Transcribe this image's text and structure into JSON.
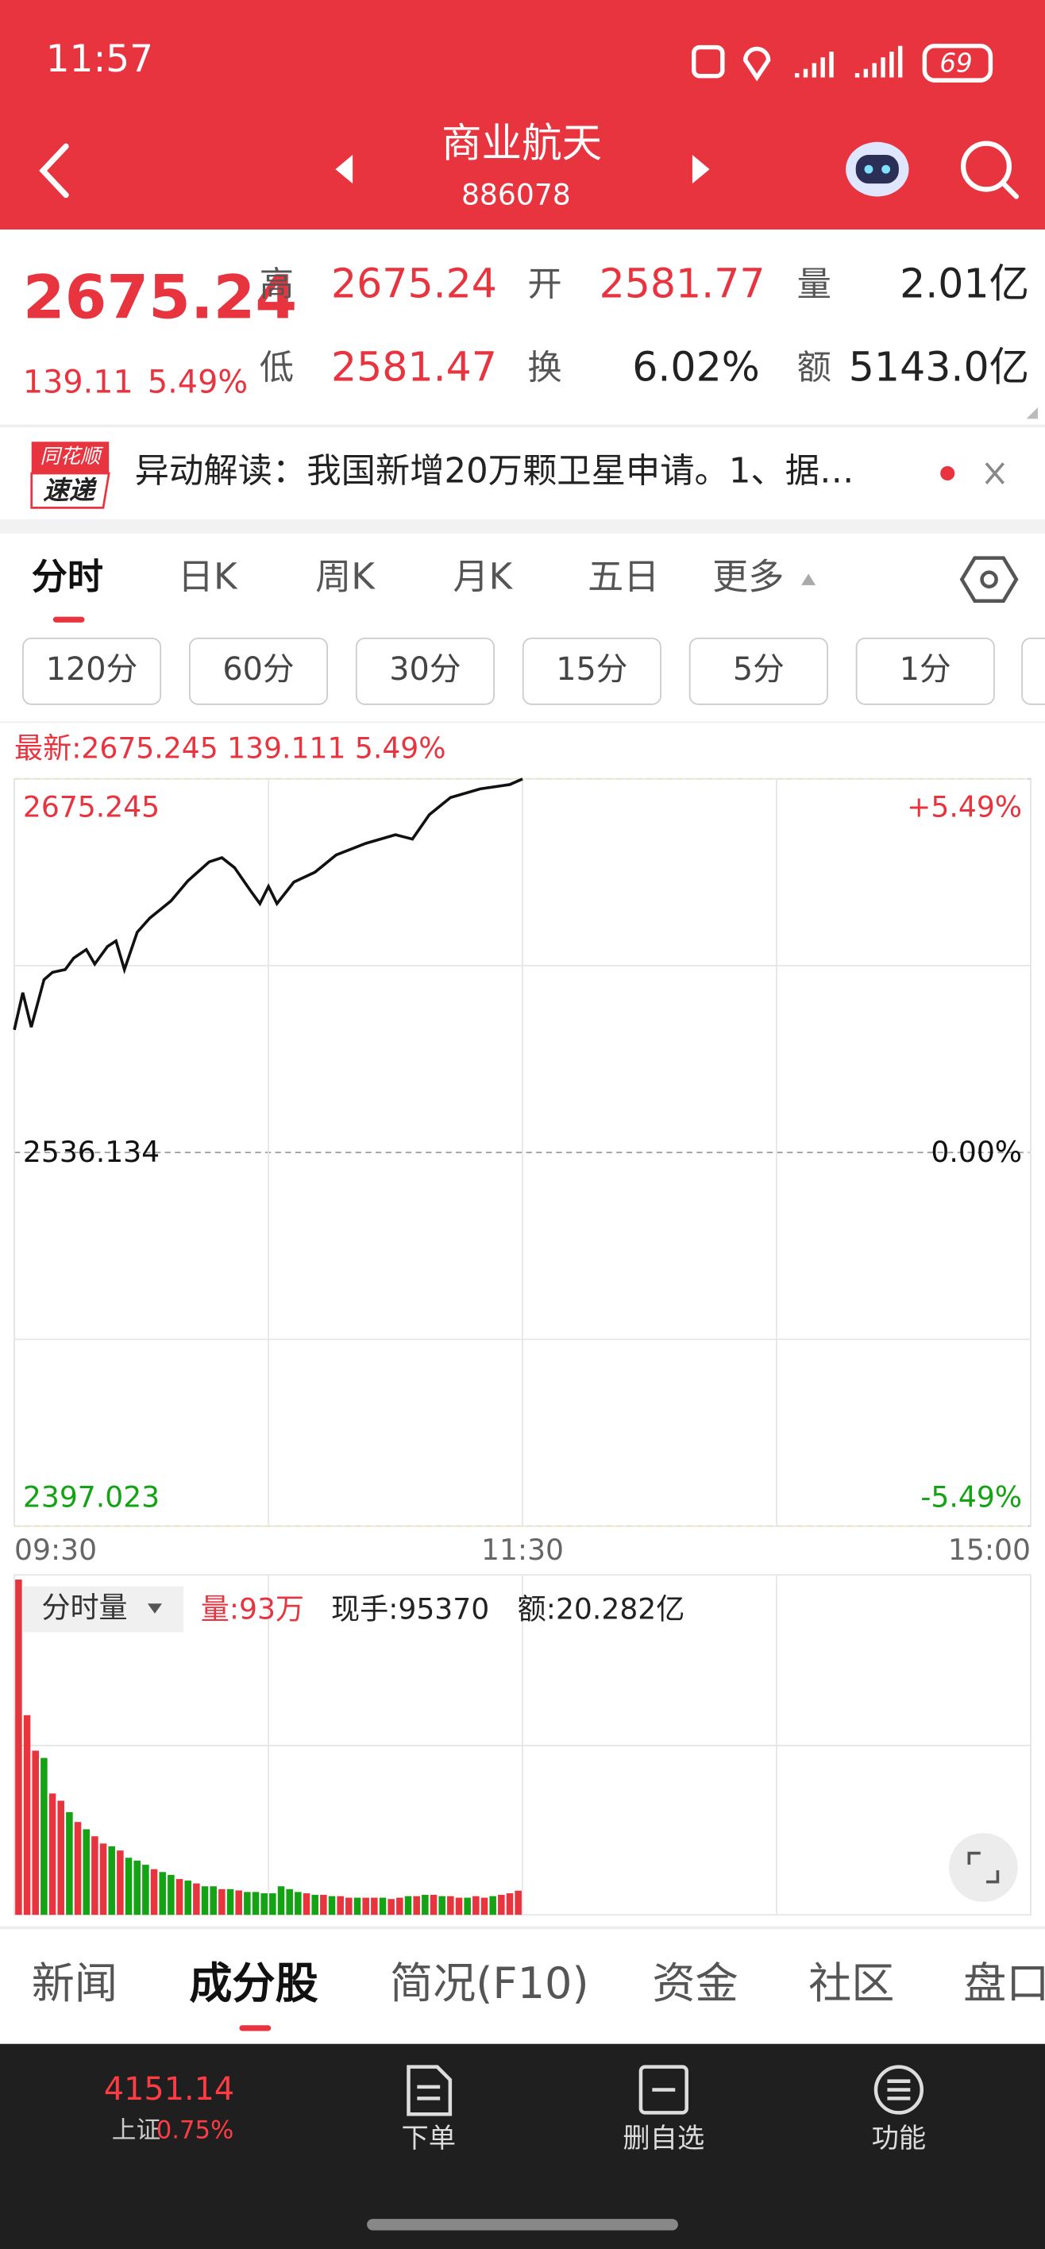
{
  "status_bar": {
    "time": "11:57",
    "battery": "69"
  },
  "header": {
    "title": "商业航天",
    "code": "886078"
  },
  "quote": {
    "price": "2675.24",
    "change": "139.11",
    "change_pct": "5.49%",
    "stats": [
      {
        "label": "高",
        "value": "2675.24"
      },
      {
        "label": "开",
        "value": "2581.77"
      },
      {
        "label": "量",
        "value": "2.01亿"
      },
      {
        "label": "低",
        "value": "2581.47"
      },
      {
        "label": "换",
        "value": "6.02%"
      },
      {
        "label": "额",
        "value": "5143.0亿"
      }
    ]
  },
  "news": {
    "badge_top": "同花顺",
    "badge_bottom": "速递",
    "text": "异动解读：我国新增20万颗卫星申请。1、据…"
  },
  "chart_tabs": [
    "分时",
    "日K",
    "周K",
    "月K",
    "五日",
    "更多"
  ],
  "periods": [
    "120分",
    "60分",
    "30分",
    "15分",
    "5分",
    "1分"
  ],
  "chart_data": [
    {
      "type": "line",
      "title": "最新:2675.245 139.111 5.49%",
      "x": [
        0,
        2,
        4,
        7,
        9,
        12,
        14,
        17,
        19,
        22,
        24,
        26,
        29,
        32,
        37,
        41,
        46,
        49,
        52,
        56,
        58,
        60,
        62,
        66,
        71,
        76,
        83,
        90,
        94,
        98,
        103,
        110,
        117,
        120
      ],
      "series": [
        {
          "color": "#111111",
          "values": [
            2581.8,
            2595.6,
            2582.8,
            2600.5,
            2603.2,
            2604.2,
            2608.5,
            2611.7,
            2606.3,
            2612.8,
            2614.9,
            2604.2,
            2618.1,
            2623.4,
            2629.8,
            2637.3,
            2644.3,
            2645.9,
            2642.2,
            2633.1,
            2628.8,
            2635.2,
            2628.8,
            2636.8,
            2640.5,
            2646.9,
            2651.2,
            2654.4,
            2652.8,
            2661.9,
            2668.3,
            2671.5,
            2673.1,
            2675.2
          ]
        }
      ],
      "xlim": [
        0,
        240
      ],
      "xticks": [
        {
          "value": 0,
          "label": "09:30"
        },
        {
          "value": 120,
          "label": "11:30"
        },
        {
          "value": 240,
          "label": "15:00"
        }
      ],
      "ylim": [
        2397.023,
        2675.245
      ],
      "yticks": [
        2675.245,
        2536.134,
        2397.023
      ],
      "y2lim": [
        -5.49,
        5.49
      ],
      "y2ticks": [
        {
          "value": 5.49,
          "label": "+5.49%"
        },
        {
          "value": 0,
          "label": "0.00%"
        },
        {
          "value": -5.49,
          "label": "-5.49%"
        }
      ],
      "grid": true
    },
    {
      "type": "bar",
      "selector": "分时量",
      "labels": [
        "量:93万",
        "现手:95370",
        "额:20.282亿"
      ],
      "x": [
        1,
        3,
        5,
        7,
        9,
        11,
        13,
        15,
        17,
        19,
        21,
        23,
        25,
        27,
        29,
        31,
        33,
        35,
        37,
        39,
        41,
        43,
        45,
        47,
        49,
        51,
        53,
        55,
        57,
        59,
        61,
        63,
        65,
        67,
        69,
        71,
        73,
        75,
        77,
        79,
        81,
        83,
        85,
        87,
        89,
        91,
        93,
        95,
        97,
        99,
        101,
        103,
        105,
        107,
        109,
        111,
        113,
        115,
        117,
        119
      ],
      "values": [
        1293,
        770,
        633,
        605,
        468,
        440,
        396,
        358,
        330,
        303,
        275,
        264,
        248,
        220,
        209,
        193,
        176,
        165,
        154,
        138,
        132,
        121,
        110,
        110,
        99,
        99,
        94,
        88,
        88,
        83,
        83,
        110,
        99,
        88,
        83,
        77,
        77,
        72,
        72,
        66,
        66,
        66,
        66,
        66,
        61,
        66,
        72,
        72,
        77,
        77,
        72,
        72,
        66,
        66,
        72,
        66,
        72,
        77,
        83,
        93
      ],
      "colors": [
        "#e8343f",
        "#e8343f",
        "#e8343f",
        "#14a314",
        "#e8343f",
        "#e8343f",
        "#14a314",
        "#e8343f",
        "#14a314",
        "#e8343f",
        "#e8343f",
        "#14a314",
        "#e8343f",
        "#14a314",
        "#14a314",
        "#14a314",
        "#e8343f",
        "#14a314",
        "#14a314",
        "#e8343f",
        "#14a314",
        "#e8343f",
        "#14a314",
        "#14a314",
        "#e8343f",
        "#14a314",
        "#e8343f",
        "#14a314",
        "#14a314",
        "#14a314",
        "#14a314",
        "#14a314",
        "#14a314",
        "#14a314",
        "#e8343f",
        "#14a314",
        "#e8343f",
        "#14a314",
        "#e8343f",
        "#e8343f",
        "#14a314",
        "#e8343f",
        "#e8343f",
        "#14a314",
        "#e8343f",
        "#e8343f",
        "#14a314",
        "#e8343f",
        "#14a314",
        "#e8343f",
        "#14a314",
        "#e8343f",
        "#e8343f",
        "#14a314",
        "#e8343f",
        "#e8343f",
        "#14a314",
        "#e8343f",
        "#e8343f",
        "#e8343f"
      ],
      "xlim": [
        0,
        240
      ],
      "ylim": [
        0,
        1300
      ]
    }
  ],
  "bottom_tabs": [
    "新闻",
    "成分股",
    "简况(F10)",
    "资金",
    "社区",
    "盘口"
  ],
  "bottom_nav": {
    "index_value": "4151.14",
    "index_name": "上证",
    "index_change": "0.75%",
    "items": [
      "下单",
      "删自选",
      "功能"
    ]
  }
}
